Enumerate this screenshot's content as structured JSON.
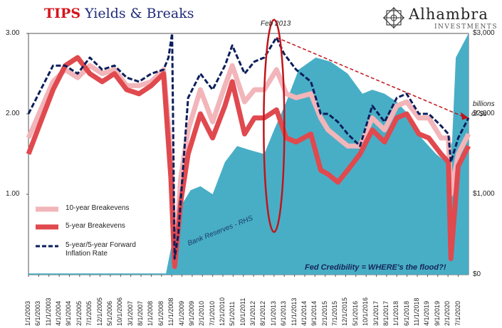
{
  "title": {
    "part1": "TIPS",
    "part2": "Yields & Breaks"
  },
  "logo": {
    "name": "Alhambra",
    "sub": "INVESTMENTS",
    "icon": "geometric-star-icon"
  },
  "colors": {
    "bg": "#ffffff",
    "ten_year": "#f2b5b9",
    "five_year": "#e0494e",
    "forward": "#0b1e5c",
    "reserves": "#48aec6",
    "highlight": "#c0151b",
    "trend": "#c0151b"
  },
  "chart_data": {
    "type": "line",
    "title": "TIPS Yields & Breaks",
    "y_left": {
      "ticks": [
        "3.00",
        "2.00",
        "1.00"
      ],
      "range": [
        0,
        3
      ]
    },
    "y_right": {
      "label": "billions of $s",
      "ticks": [
        "$3,000",
        "$2,000",
        "$1,000",
        "$0"
      ],
      "range": [
        0,
        3000
      ]
    },
    "x_ticks": [
      "1/1/2003",
      "6/1/2003",
      "11/1/2003",
      "4/1/2004",
      "9/1/2004",
      "2/1/2005",
      "7/1/2005",
      "12/1/2005",
      "5/1/2006",
      "10/1/2006",
      "3/1/2007",
      "8/1/2007",
      "1/1/2008",
      "6/1/2008",
      "11/1/2008",
      "4/1/2009",
      "9/1/2009",
      "2/1/2010",
      "7/1/2010",
      "12/1/2010",
      "5/1/2011",
      "10/1/2011",
      "3/1/2012",
      "8/1/2012",
      "1/1/2013",
      "6/1/2013",
      "11/1/2013",
      "4/1/2014",
      "9/1/2014",
      "2/1/2015",
      "7/1/2015",
      "12/1/2015",
      "5/1/2016",
      "10/1/2016",
      "3/1/2017",
      "8/1/2017",
      "1/1/2018",
      "6/1/2018",
      "11/1/2018",
      "4/1/2019",
      "9/1/2019",
      "2/1/2020",
      "7/1/2020"
    ],
    "x_range": [
      2003.0,
      2020.92
    ],
    "series": [
      {
        "name": "10-year Breakevens",
        "style": "line",
        "x": [
          2003.0,
          2003.5,
          2004.0,
          2004.5,
          2005.0,
          2005.5,
          2006.0,
          2006.5,
          2007.0,
          2007.5,
          2008.0,
          2008.5,
          2008.8,
          2008.95,
          2009.2,
          2009.5,
          2010.0,
          2010.5,
          2011.0,
          2011.3,
          2011.8,
          2012.2,
          2012.6,
          2013.1,
          2013.5,
          2013.9,
          2014.5,
          2014.9,
          2015.2,
          2015.6,
          2016.0,
          2016.5,
          2017.0,
          2017.5,
          2018.0,
          2018.4,
          2018.9,
          2019.3,
          2019.8,
          2020.1,
          2020.2,
          2020.5,
          2020.92
        ],
        "y": [
          1.7,
          2.05,
          2.4,
          2.55,
          2.45,
          2.6,
          2.5,
          2.55,
          2.35,
          2.35,
          2.4,
          2.55,
          1.5,
          0.1,
          1.2,
          1.8,
          2.3,
          1.9,
          2.35,
          2.6,
          2.15,
          2.3,
          2.3,
          2.55,
          2.25,
          2.2,
          2.25,
          1.95,
          1.8,
          1.7,
          1.6,
          1.6,
          1.95,
          1.8,
          2.1,
          2.15,
          1.95,
          1.95,
          1.7,
          1.7,
          1.0,
          1.5,
          1.75
        ]
      },
      {
        "name": "5-year Breakevens",
        "style": "line",
        "x": [
          2003.0,
          2003.5,
          2004.0,
          2004.5,
          2005.0,
          2005.5,
          2006.0,
          2006.5,
          2007.0,
          2007.5,
          2008.0,
          2008.5,
          2008.8,
          2008.95,
          2009.2,
          2009.5,
          2010.0,
          2010.5,
          2011.0,
          2011.3,
          2011.8,
          2012.2,
          2012.6,
          2013.1,
          2013.5,
          2013.9,
          2014.5,
          2014.9,
          2015.2,
          2015.6,
          2016.0,
          2016.5,
          2017.0,
          2017.5,
          2018.0,
          2018.4,
          2018.9,
          2019.3,
          2019.8,
          2020.1,
          2020.2,
          2020.5,
          2020.92
        ],
        "y": [
          1.5,
          1.9,
          2.3,
          2.6,
          2.7,
          2.5,
          2.4,
          2.5,
          2.3,
          2.25,
          2.35,
          2.5,
          1.2,
          0.1,
          0.9,
          1.5,
          2.0,
          1.7,
          2.1,
          2.4,
          1.75,
          1.95,
          1.95,
          2.05,
          1.7,
          1.65,
          1.75,
          1.3,
          1.25,
          1.15,
          1.3,
          1.5,
          1.8,
          1.65,
          1.95,
          2.0,
          1.75,
          1.7,
          1.5,
          1.4,
          0.2,
          1.35,
          1.6
        ]
      },
      {
        "name": "5-year/5-year Forward Inflation Rate",
        "style": "dashed",
        "x": [
          2003.0,
          2003.5,
          2004.0,
          2004.5,
          2005.0,
          2005.5,
          2006.0,
          2006.5,
          2007.0,
          2007.5,
          2008.0,
          2008.5,
          2008.7,
          2008.85,
          2008.95,
          2009.1,
          2009.5,
          2010.0,
          2010.5,
          2011.0,
          2011.3,
          2011.8,
          2012.2,
          2012.6,
          2013.1,
          2013.4,
          2013.9,
          2014.5,
          2014.9,
          2015.2,
          2015.6,
          2016.0,
          2016.5,
          2017.0,
          2017.5,
          2018.0,
          2018.4,
          2018.9,
          2019.3,
          2019.8,
          2020.1,
          2020.2,
          2020.5,
          2020.92
        ],
        "y": [
          2.0,
          2.3,
          2.6,
          2.6,
          2.5,
          2.7,
          2.55,
          2.6,
          2.45,
          2.4,
          2.5,
          2.55,
          2.7,
          3.0,
          0.2,
          0.5,
          2.2,
          2.5,
          2.3,
          2.6,
          2.85,
          2.5,
          2.65,
          2.7,
          2.95,
          2.75,
          2.55,
          2.4,
          2.0,
          2.0,
          1.9,
          1.75,
          1.6,
          2.1,
          1.9,
          2.2,
          2.25,
          2.0,
          2.0,
          1.85,
          1.75,
          1.4,
          1.7,
          1.95
        ]
      },
      {
        "name": "Bank Reserves - RHS",
        "style": "area",
        "axis": "right",
        "x": [
          2003.0,
          2008.6,
          2008.85,
          2009.0,
          2009.3,
          2009.6,
          2010.0,
          2010.5,
          2011.0,
          2011.5,
          2012.0,
          2012.6,
          2013.0,
          2013.5,
          2014.0,
          2014.7,
          2015.3,
          2016.0,
          2016.6,
          2017.0,
          2017.5,
          2018.0,
          2018.6,
          2019.0,
          2019.6,
          2020.0,
          2020.25,
          2020.4,
          2020.92
        ],
        "y": [
          15,
          15,
          400,
          800,
          900,
          1050,
          1100,
          1000,
          1400,
          1600,
          1550,
          1500,
          1800,
          2150,
          2550,
          2700,
          2650,
          2500,
          2250,
          2300,
          2250,
          2150,
          1950,
          1700,
          1500,
          1400,
          1650,
          2700,
          3000
        ]
      }
    ],
    "annotations": {
      "feb_2013": "Feb 2013",
      "reserves_label": "Bank Reserves - RHS",
      "credibility": "Fed Credibility = WHERE's the flood?!",
      "trend_from": {
        "x": 2013.1,
        "y": 2.95
      },
      "trend_to": {
        "x": 2020.92,
        "y": 1.95
      },
      "ellipse_center": {
        "x": 2013.0,
        "y": 1.85
      },
      "ellipse_halfspan": {
        "x": 0.42,
        "y": 1.32
      }
    },
    "legend_position": "left-middle"
  }
}
